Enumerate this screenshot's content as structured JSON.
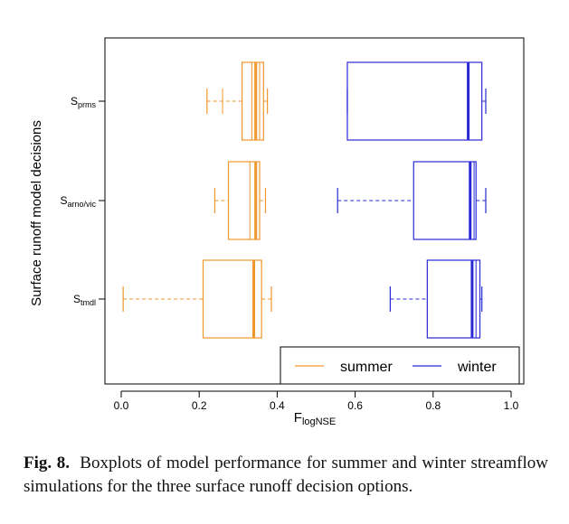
{
  "chart_data": {
    "type": "boxplot",
    "orientation": "horizontal",
    "title": "",
    "xlabel": {
      "main": "F",
      "sub": "logNSE"
    },
    "ylabel": "Surface runoff model decisions",
    "xlim": [
      -0.04,
      1.04
    ],
    "xticks": [
      0.0,
      0.2,
      0.4,
      0.6,
      0.8,
      1.0
    ],
    "xtick_labels": [
      "0.0",
      "0.2",
      "0.4",
      "0.6",
      "0.8",
      "1.0"
    ],
    "categories": [
      {
        "main": "S",
        "sub": "prms"
      },
      {
        "main": "S",
        "sub": "arno/vic"
      },
      {
        "main": "S",
        "sub": "tmdl"
      }
    ],
    "grid": false,
    "legend": {
      "placement": "bottom-right",
      "entries": [
        "summer",
        "winter"
      ]
    },
    "series": [
      {
        "name": "summer",
        "color": "#f0962a",
        "boxes": [
          {
            "whisker_low": 0.22,
            "q1": 0.31,
            "median": 0.345,
            "q3": 0.365,
            "whisker_high": 0.375,
            "inner_lines": [
              0.26,
              0.335,
              0.355
            ]
          },
          {
            "whisker_low": 0.24,
            "q1": 0.275,
            "median": 0.345,
            "q3": 0.355,
            "whisker_high": 0.37,
            "inner_lines": [
              0.33
            ]
          },
          {
            "whisker_low": 0.005,
            "q1": 0.21,
            "median": 0.34,
            "q3": 0.36,
            "whisker_high": 0.385,
            "inner_lines": []
          }
        ]
      },
      {
        "name": "winter",
        "color": "#2929d6",
        "boxes": [
          {
            "whisker_low": 0.58,
            "q1": 0.58,
            "median": 0.89,
            "q3": 0.925,
            "whisker_high": 0.935,
            "inner_lines": []
          },
          {
            "whisker_low": 0.555,
            "q1": 0.75,
            "median": 0.895,
            "q3": 0.91,
            "whisker_high": 0.935,
            "inner_lines": [
              0.905
            ]
          },
          {
            "whisker_low": 0.69,
            "q1": 0.785,
            "median": 0.9,
            "q3": 0.92,
            "whisker_high": 0.925,
            "inner_lines": [
              0.91
            ]
          }
        ]
      }
    ]
  },
  "caption": {
    "label": "Fig. 8.",
    "text": "Boxplots of model performance for summer and winter streamflow simulations for the three surface runoff decision options."
  }
}
